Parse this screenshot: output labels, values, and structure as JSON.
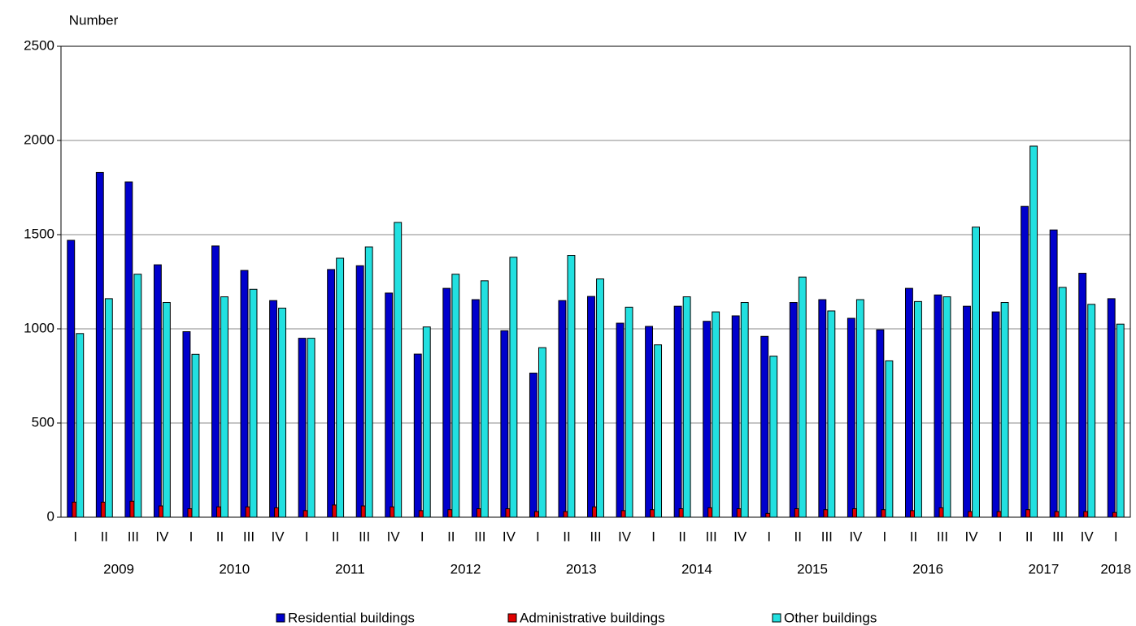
{
  "chart_data": {
    "type": "bar",
    "y_label": "Number",
    "groups": [
      {
        "name": "2009",
        "categories": [
          "I",
          "II",
          "III",
          "IV"
        ]
      },
      {
        "name": "2010",
        "categories": [
          "I",
          "II",
          "III",
          "IV"
        ]
      },
      {
        "name": "2011",
        "categories": [
          "I",
          "II",
          "III",
          "IV"
        ]
      },
      {
        "name": "2012",
        "categories": [
          "I",
          "II",
          "III",
          "IV"
        ]
      },
      {
        "name": "2013",
        "categories": [
          "I",
          "II",
          "III",
          "IV"
        ]
      },
      {
        "name": "2014",
        "categories": [
          "I",
          "II",
          "III",
          "IV"
        ]
      },
      {
        "name": "2015",
        "categories": [
          "I",
          "II",
          "III",
          "IV"
        ]
      },
      {
        "name": "2016",
        "categories": [
          "I",
          "II",
          "III",
          "IV"
        ]
      },
      {
        "name": "2017",
        "categories": [
          "I",
          "II",
          "III",
          "IV"
        ]
      },
      {
        "name": "2018",
        "categories": [
          "I"
        ]
      }
    ],
    "series": [
      {
        "name": "Residential buildings",
        "color": "#0000cc",
        "values": [
          1470,
          1830,
          1780,
          1340,
          985,
          1440,
          1310,
          1150,
          950,
          1315,
          1335,
          1190,
          866,
          1215,
          1155,
          990,
          765,
          1150,
          1172,
          1030,
          1013,
          1120,
          1040,
          1069,
          960,
          1140,
          1155,
          1056,
          995,
          1215,
          1180,
          1120,
          1090,
          1650,
          1525,
          1295,
          1160
        ]
      },
      {
        "name": "Administrative buildings",
        "color": "#e00000",
        "values": [
          80,
          80,
          85,
          60,
          45,
          55,
          55,
          50,
          35,
          65,
          60,
          55,
          35,
          40,
          45,
          45,
          30,
          30,
          55,
          35,
          40,
          45,
          50,
          45,
          20,
          45,
          40,
          45,
          40,
          35,
          50,
          30,
          30,
          40,
          30,
          30,
          25
        ]
      },
      {
        "name": "Other buildings",
        "color": "#22e0e0",
        "values": [
          975,
          1160,
          1290,
          1140,
          865,
          1170,
          1210,
          1110,
          950,
          1375,
          1435,
          1565,
          1010,
          1290,
          1255,
          1380,
          900,
          1390,
          1265,
          1115,
          915,
          1170,
          1090,
          1140,
          855,
          1275,
          1095,
          1155,
          830,
          1145,
          1170,
          1540,
          1140,
          1970,
          1220,
          1130,
          1025
        ]
      }
    ],
    "ylim": [
      0,
      2500
    ],
    "yticks": [
      0,
      500,
      1000,
      1500,
      2000,
      2500
    ],
    "grid": true
  }
}
